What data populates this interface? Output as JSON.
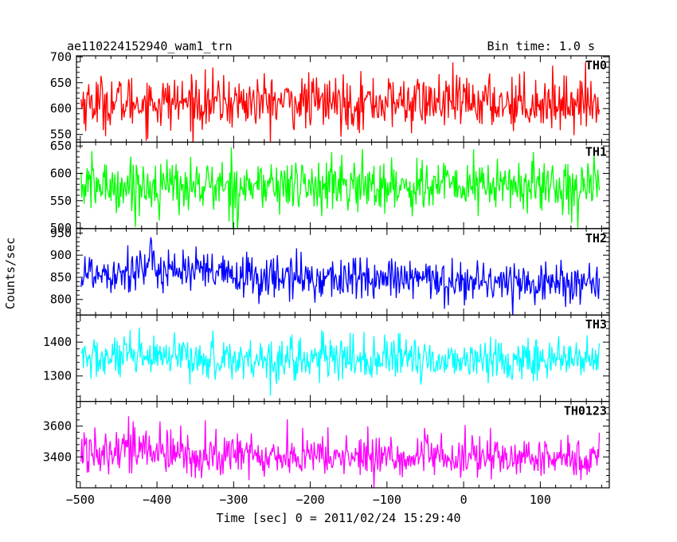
{
  "chart_data": {
    "type": "line",
    "title": "ae110224152940_wam1_trn",
    "bin_time": "Bin time: 1.0 s",
    "xlabel": "Time [sec] 0 = 2011/02/24 15:29:40",
    "ylabel": "Counts/sec",
    "xlim": [
      -505,
      190
    ],
    "x_start": -499,
    "x_end": 177,
    "x_step": 1,
    "xticks": [
      -500,
      -400,
      -300,
      -200,
      -100,
      0,
      100
    ],
    "grid": false,
    "panels": [
      {
        "name": "TH0",
        "color": "#ff0000",
        "ylim": [
          535,
          702
        ],
        "yticks": [
          550,
          600,
          650,
          700
        ],
        "mean": 612,
        "sd": 26,
        "amp_start": 1.0,
        "amp_end": 1.0,
        "trend": 0,
        "bumps": []
      },
      {
        "name": "TH1",
        "color": "#00ff00",
        "ylim": [
          499,
          657
        ],
        "yticks": [
          500,
          550,
          600,
          650
        ],
        "mean": 577,
        "sd": 25,
        "amp_start": 1.0,
        "amp_end": 1.0,
        "trend": 0,
        "bumps": []
      },
      {
        "name": "TH2",
        "color": "#0000ff",
        "ylim": [
          765,
          960
        ],
        "yticks": [
          800,
          850,
          900,
          950
        ],
        "mean": 858,
        "sd": 27,
        "amp_start": 1.0,
        "amp_end": 0.85,
        "trend": -22,
        "bumps": [
          {
            "x": -400,
            "w": 60,
            "h": 18
          }
        ]
      },
      {
        "name": "TH3",
        "color": "#00ffff",
        "ylim": [
          1225,
          1480
        ],
        "yticks": [
          1300,
          1400
        ],
        "mean": 1352,
        "sd": 33,
        "amp_start": 1.0,
        "amp_end": 0.95,
        "trend": -5,
        "bumps": []
      },
      {
        "name": "TH0123",
        "color": "#ff00ff",
        "ylim": [
          3200,
          3760
        ],
        "yticks": [
          3400,
          3600
        ],
        "mean": 3418,
        "sd": 72,
        "amp_start": 1.15,
        "amp_end": 0.85,
        "trend": -30,
        "bumps": [
          {
            "x": -450,
            "w": 40,
            "h": 60
          }
        ]
      }
    ]
  }
}
